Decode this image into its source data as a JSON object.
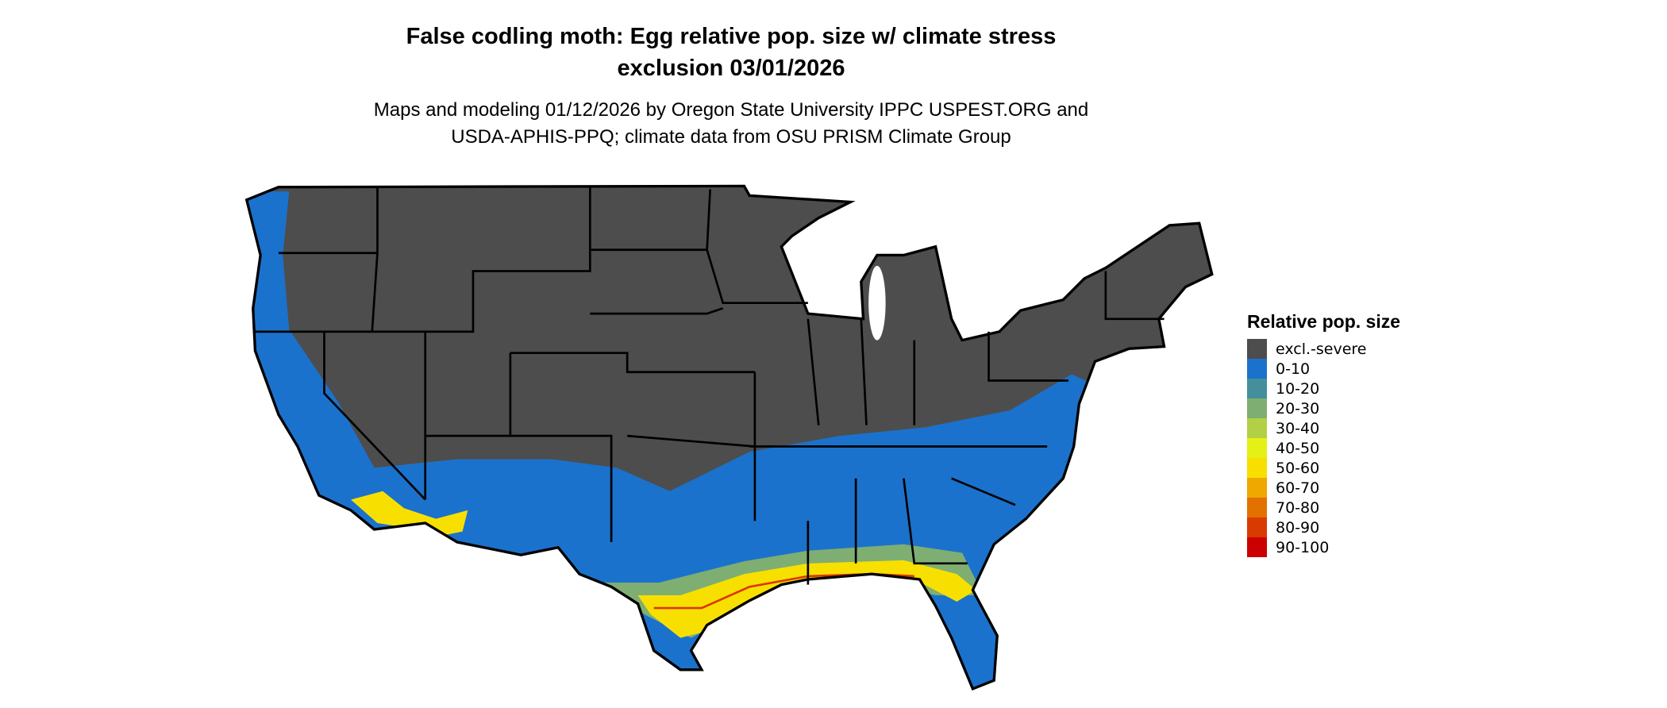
{
  "title": [
    "False codling moth: Egg relative pop. size w/ climate stress",
    "exclusion 03/01/2026"
  ],
  "subtitle": [
    "Maps and modeling 01/12/2026 by Oregon State University IPPC USPEST.ORG and",
    "USDA-APHIS-PPQ; climate data from OSU PRISM Climate Group"
  ],
  "legend": {
    "title": "Relative pop. size",
    "items": [
      {
        "label": "excl.-severe",
        "color": "#4d4d4d"
      },
      {
        "label": "0-10",
        "color": "#1b72cc"
      },
      {
        "label": "10-20",
        "color": "#458f9c"
      },
      {
        "label": "20-30",
        "color": "#7fae72"
      },
      {
        "label": "30-40",
        "color": "#b2d045"
      },
      {
        "label": "40-50",
        "color": "#e5f016"
      },
      {
        "label": "50-60",
        "color": "#f7e000"
      },
      {
        "label": "60-70",
        "color": "#eea800"
      },
      {
        "label": "70-80",
        "color": "#e27100"
      },
      {
        "label": "80-90",
        "color": "#d93a00"
      },
      {
        "label": "90-100",
        "color": "#cc0000"
      }
    ]
  },
  "map": {
    "region": "Contiguous United States",
    "borders": "state outlines"
  }
}
